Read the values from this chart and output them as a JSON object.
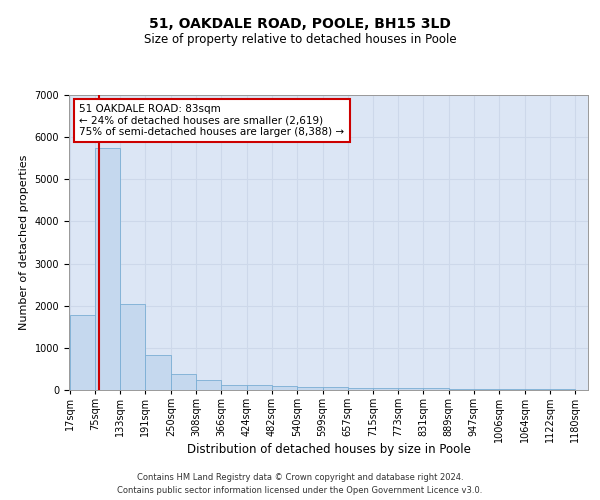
{
  "title": "51, OAKDALE ROAD, POOLE, BH15 3LD",
  "subtitle": "Size of property relative to detached houses in Poole",
  "xlabel": "Distribution of detached houses by size in Poole",
  "ylabel": "Number of detached properties",
  "annotation_line1": "51 OAKDALE ROAD: 83sqm",
  "annotation_line2": "← 24% of detached houses are smaller (2,619)",
  "annotation_line3": "75% of semi-detached houses are larger (8,388) →",
  "footer_line1": "Contains HM Land Registry data © Crown copyright and database right 2024.",
  "footer_line2": "Contains public sector information licensed under the Open Government Licence v3.0.",
  "property_size": 83,
  "bin_edges": [
    17,
    75,
    133,
    191,
    250,
    308,
    366,
    424,
    482,
    540,
    599,
    657,
    715,
    773,
    831,
    889,
    947,
    1006,
    1064,
    1122,
    1180
  ],
  "bar_heights": [
    1780,
    5750,
    2050,
    830,
    380,
    230,
    130,
    110,
    90,
    70,
    60,
    55,
    50,
    45,
    40,
    35,
    30,
    25,
    20,
    15
  ],
  "bar_color": "#c5d8ee",
  "bar_edge_color": "#7aadd4",
  "vline_color": "#cc0000",
  "vline_x": 83,
  "grid_color": "#cdd8ea",
  "background_color": "#dce6f5",
  "ylim": [
    0,
    7000
  ],
  "yticks": [
    0,
    1000,
    2000,
    3000,
    4000,
    5000,
    6000,
    7000
  ],
  "title_fontsize": 10,
  "subtitle_fontsize": 8.5,
  "ylabel_fontsize": 8,
  "xlabel_fontsize": 8.5,
  "tick_fontsize": 7,
  "annotation_fontsize": 7.5,
  "footer_fontsize": 6
}
